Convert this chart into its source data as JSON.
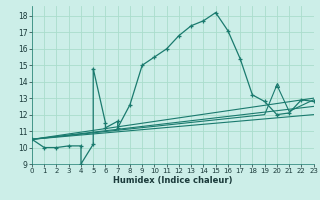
{
  "bg_color": "#cceee8",
  "grid_color": "#aaddcc",
  "line_color": "#1a7a6e",
  "xlabel": "Humidex (Indice chaleur)",
  "xlim": [
    0,
    23
  ],
  "ylim": [
    9,
    18.6
  ],
  "xticks": [
    0,
    1,
    2,
    3,
    4,
    5,
    6,
    7,
    8,
    9,
    10,
    11,
    12,
    13,
    14,
    15,
    16,
    17,
    18,
    19,
    20,
    21,
    22,
    23
  ],
  "yticks": [
    9,
    10,
    11,
    12,
    13,
    14,
    15,
    16,
    17,
    18
  ],
  "main_x": [
    0,
    1,
    2,
    3,
    4,
    4,
    5,
    5,
    6,
    6,
    7,
    7,
    8,
    9,
    10,
    11,
    12,
    13,
    14,
    15,
    16,
    17,
    18,
    19,
    20,
    21,
    22,
    23
  ],
  "main_y": [
    10.5,
    10.0,
    10.0,
    10.1,
    10.1,
    9.0,
    10.2,
    14.8,
    11.5,
    11.2,
    11.6,
    11.2,
    12.6,
    15.0,
    15.5,
    16.0,
    16.8,
    17.4,
    17.7,
    18.2,
    17.1,
    15.4,
    13.2,
    12.8,
    12.0,
    12.1,
    12.9,
    12.8
  ],
  "line2_x": [
    0,
    23
  ],
  "line2_y": [
    10.5,
    13.0
  ],
  "line3_x": [
    0,
    23
  ],
  "line3_y": [
    10.5,
    12.5
  ],
  "line4_x": [
    0,
    19,
    20,
    21,
    23
  ],
  "line4_y": [
    10.5,
    12.0,
    13.8,
    12.2,
    12.9
  ],
  "line5_x": [
    0,
    23
  ],
  "line5_y": [
    10.5,
    12.0
  ]
}
